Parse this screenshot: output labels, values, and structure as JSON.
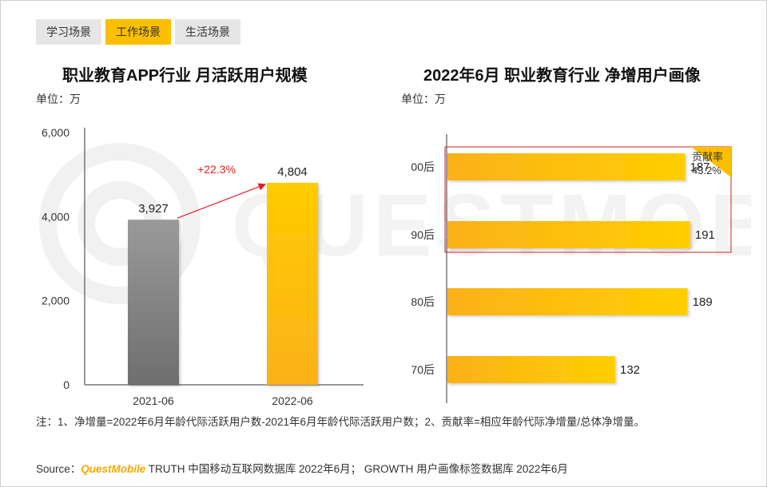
{
  "tabs": [
    {
      "label": "学习场景",
      "active": false
    },
    {
      "label": "工作场景",
      "active": true
    },
    {
      "label": "生活场景",
      "active": false
    }
  ],
  "watermark": "QUESTMOBILE",
  "colors": {
    "accent": "#fbbf00",
    "gray": "#8a8a8a",
    "red": "#e02020"
  },
  "chart_data": [
    {
      "type": "bar",
      "title": "职业教育APP行业 月活跃用户规模",
      "unit": "单位：万",
      "categories": [
        "2021-06",
        "2022-06"
      ],
      "values": [
        3927,
        4804
      ],
      "value_labels": [
        "3,927",
        "4,804"
      ],
      "yticks": [
        "0",
        "2,000",
        "4,000",
        "6,000"
      ],
      "ylim": [
        0,
        6000
      ],
      "growth_label": "+22.3%"
    },
    {
      "type": "bar",
      "orientation": "horizontal",
      "title": "2022年6月 职业教育行业 净增用户画像",
      "unit": "单位：万",
      "categories": [
        "00后",
        "90后",
        "80后",
        "70后"
      ],
      "values": [
        187,
        191,
        189,
        132
      ],
      "value_labels": [
        "187",
        "191",
        "189",
        "132"
      ],
      "xlim": [
        0,
        220
      ],
      "contribution": {
        "label": "贡献率",
        "value": "43.2%"
      }
    }
  ],
  "notes": "注：1、净增量=2022年6月年龄代际活跃用户数-2021年6月年龄代际活跃用户数；2、贡献率=相应年龄代际净增量/总体净增量。",
  "source": {
    "prefix": "Source：",
    "brand": "QuestMobile",
    "text": " TRUTH 中国移动互联网数据库 2022年6月； GROWTH 用户画像标签数据库 2022年6月"
  }
}
